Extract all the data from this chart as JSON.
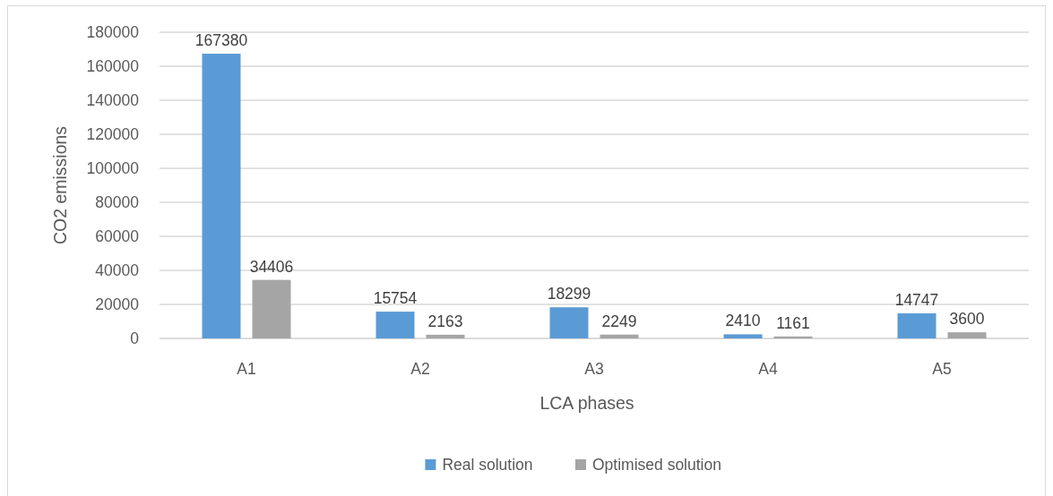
{
  "chart_data": {
    "type": "bar",
    "xlabel": "LCA phases",
    "ylabel": "CO2 emissions",
    "categories": [
      "A1",
      "A2",
      "A3",
      "A4",
      "A5"
    ],
    "series": [
      {
        "name": "Real solution",
        "color": "#5b9bd5",
        "values": [
          167380,
          15754,
          18299,
          2410,
          14747
        ]
      },
      {
        "name": "Optimised solution",
        "color": "#a5a5a5",
        "values": [
          34406,
          2163,
          2249,
          1161,
          3600
        ]
      }
    ],
    "ylim": [
      0,
      180000
    ],
    "yticks": [
      0,
      20000,
      40000,
      60000,
      80000,
      100000,
      120000,
      140000,
      160000,
      180000
    ],
    "grid": "y",
    "legend": "bottom",
    "data_labels": true
  }
}
